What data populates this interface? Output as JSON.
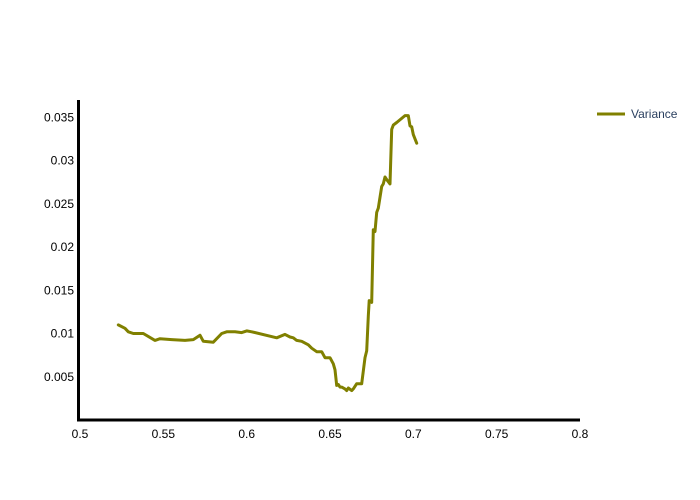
{
  "chart_data": {
    "type": "line",
    "title": "",
    "xlabel": "",
    "ylabel": "",
    "xlim": [
      0.5,
      0.8
    ],
    "ylim": [
      0.0,
      0.037
    ],
    "x_ticks": [
      0.5,
      0.55,
      0.6,
      0.65,
      0.7,
      0.75,
      0.8
    ],
    "x_tick_labels": [
      "0.5",
      "0.55",
      "0.6",
      "0.65",
      "0.7",
      "0.75",
      "0.8"
    ],
    "y_ticks": [
      0.005,
      0.01,
      0.015,
      0.02,
      0.025,
      0.03,
      0.035
    ],
    "y_tick_labels": [
      "0.005",
      "0.01",
      "0.015",
      "0.02",
      "0.025",
      "0.03",
      "0.035"
    ],
    "legend_position": "top-right",
    "grid": false,
    "series": [
      {
        "name": "Variance",
        "color": "#808000",
        "x": [
          0.523,
          0.527,
          0.529,
          0.532,
          0.538,
          0.545,
          0.548,
          0.555,
          0.563,
          0.568,
          0.572,
          0.574,
          0.58,
          0.585,
          0.588,
          0.593,
          0.597,
          0.6,
          0.603,
          0.618,
          0.623,
          0.626,
          0.628,
          0.63,
          0.633,
          0.637,
          0.639,
          0.642,
          0.645,
          0.647,
          0.65,
          0.652,
          0.653,
          0.654,
          0.655,
          0.656,
          0.657,
          0.659,
          0.66,
          0.661,
          0.663,
          0.664,
          0.666,
          0.669,
          0.671,
          0.672,
          0.673,
          0.6735,
          0.675,
          0.676,
          0.677,
          0.678,
          0.679,
          0.681,
          0.682,
          0.683,
          0.684,
          0.686,
          0.687,
          0.688,
          0.69,
          0.695,
          0.697,
          0.698,
          0.699,
          0.7,
          0.702
        ],
        "y": [
          0.011,
          0.0106,
          0.0102,
          0.01,
          0.01,
          0.0092,
          0.0094,
          0.0093,
          0.0092,
          0.0093,
          0.0098,
          0.0091,
          0.009,
          0.01,
          0.0102,
          0.0102,
          0.0101,
          0.0103,
          0.0102,
          0.0095,
          0.0099,
          0.0096,
          0.0095,
          0.0092,
          0.0091,
          0.0087,
          0.0083,
          0.0079,
          0.0079,
          0.0072,
          0.0072,
          0.0065,
          0.0058,
          0.004,
          0.0041,
          0.0038,
          0.0038,
          0.0036,
          0.0034,
          0.0037,
          0.0034,
          0.0036,
          0.0042,
          0.0042,
          0.0072,
          0.008,
          0.012,
          0.0138,
          0.0136,
          0.022,
          0.0218,
          0.024,
          0.0245,
          0.027,
          0.0273,
          0.0281,
          0.0278,
          0.0273,
          0.0336,
          0.0341,
          0.0344,
          0.0352,
          0.0352,
          0.034,
          0.0339,
          0.033,
          0.032
        ]
      }
    ]
  }
}
